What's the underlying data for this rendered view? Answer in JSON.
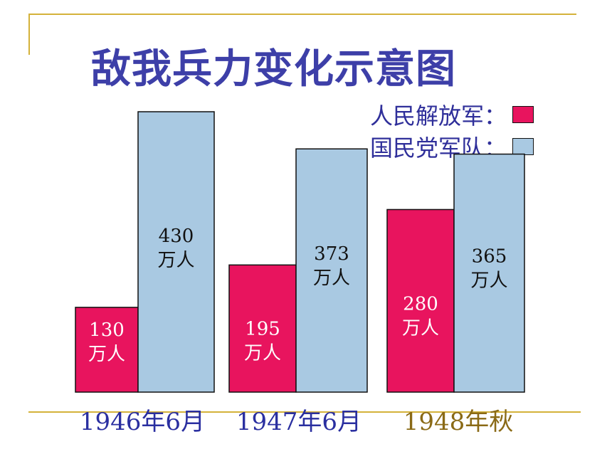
{
  "chart_data": {
    "type": "bar",
    "title": "敌我兵力变化示意图",
    "categories": [
      "1946年6月",
      "1947年6月",
      "1948年秋"
    ],
    "category_colors": [
      "#2a2fa0",
      "#2a2fa0",
      "#8a6a16"
    ],
    "series": [
      {
        "name": "人民解放军",
        "values": [
          130,
          195,
          280
        ],
        "labels": [
          "130",
          "195",
          "280"
        ],
        "color": "#e8145e"
      },
      {
        "name": "国民党军队",
        "values": [
          430,
          373,
          365
        ],
        "labels": [
          "430",
          "373",
          "365"
        ],
        "color": "#a9c9e2"
      }
    ],
    "unit": "万人",
    "legend_colon": "：",
    "legend_position": "top-right",
    "ylim": [
      0,
      430
    ],
    "grid": false
  }
}
